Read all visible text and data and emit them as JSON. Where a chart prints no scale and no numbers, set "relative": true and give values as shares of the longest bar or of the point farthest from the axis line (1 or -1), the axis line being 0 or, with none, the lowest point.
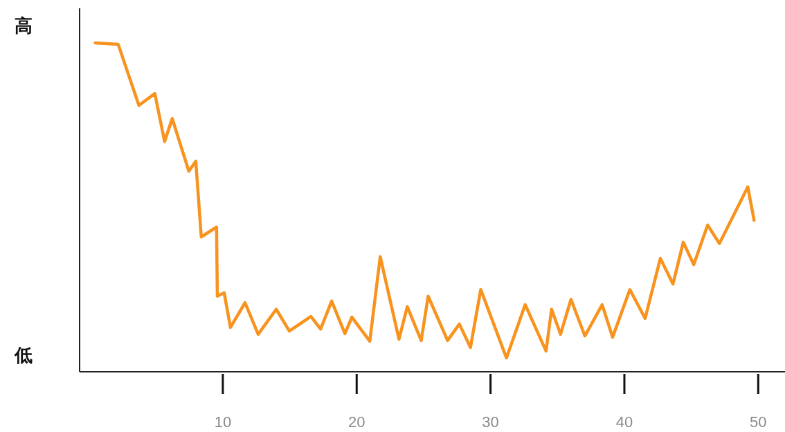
{
  "chart_data": {
    "type": "line",
    "relative": true,
    "xlim": [
      -0.7,
      52
    ],
    "xticks": [
      10,
      20,
      30,
      40,
      50
    ],
    "annotations": [
      "高",
      "低"
    ],
    "x": [
      0.47,
      2.18,
      3.73,
      4.92,
      5.65,
      6.22,
      7.46,
      7.98,
      8.39,
      9.53,
      9.59,
      10.1,
      10.57,
      11.66,
      12.64,
      13.99,
      14.97,
      16.58,
      17.31,
      18.13,
      19.12,
      19.64,
      20.98,
      21.76,
      23.16,
      23.78,
      24.82,
      25.34,
      26.79,
      27.67,
      28.5,
      29.27,
      31.19,
      32.59,
      34.15,
      34.56,
      35.23,
      36.01,
      37.05,
      38.34,
      39.12,
      40.41,
      41.55,
      42.69,
      43.63,
      44.4,
      45.18,
      46.22,
      47.1,
      49.22,
      49.69
    ],
    "series": [
      {
        "color": "#f7931e",
        "values": [
          1.0,
          0.996,
          0.81,
          0.846,
          0.7,
          0.77,
          0.61,
          0.64,
          0.41,
          0.44,
          0.23,
          0.24,
          0.135,
          0.21,
          0.114,
          0.19,
          0.124,
          0.168,
          0.13,
          0.215,
          0.116,
          0.166,
          0.093,
          0.35,
          0.099,
          0.198,
          0.095,
          0.23,
          0.095,
          0.145,
          0.074,
          0.25,
          0.042,
          0.204,
          0.063,
          0.19,
          0.114,
          0.22,
          0.109,
          0.204,
          0.105,
          0.25,
          0.162,
          0.345,
          0.267,
          0.394,
          0.326,
          0.446,
          0.39,
          0.562,
          0.461
        ]
      }
    ]
  }
}
